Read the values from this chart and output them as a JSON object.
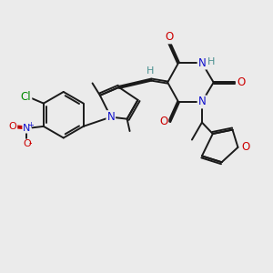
{
  "background_color": "#ebebeb",
  "bond_color": "#1a1a1a",
  "bond_width": 1.4,
  "atom_colors": {
    "N": "#1010cc",
    "O": "#cc0000",
    "Cl": "#008800",
    "H": "#4a9090",
    "C": "#1a1a1a"
  },
  "figsize": [
    3.0,
    3.0
  ],
  "dpi": 100
}
